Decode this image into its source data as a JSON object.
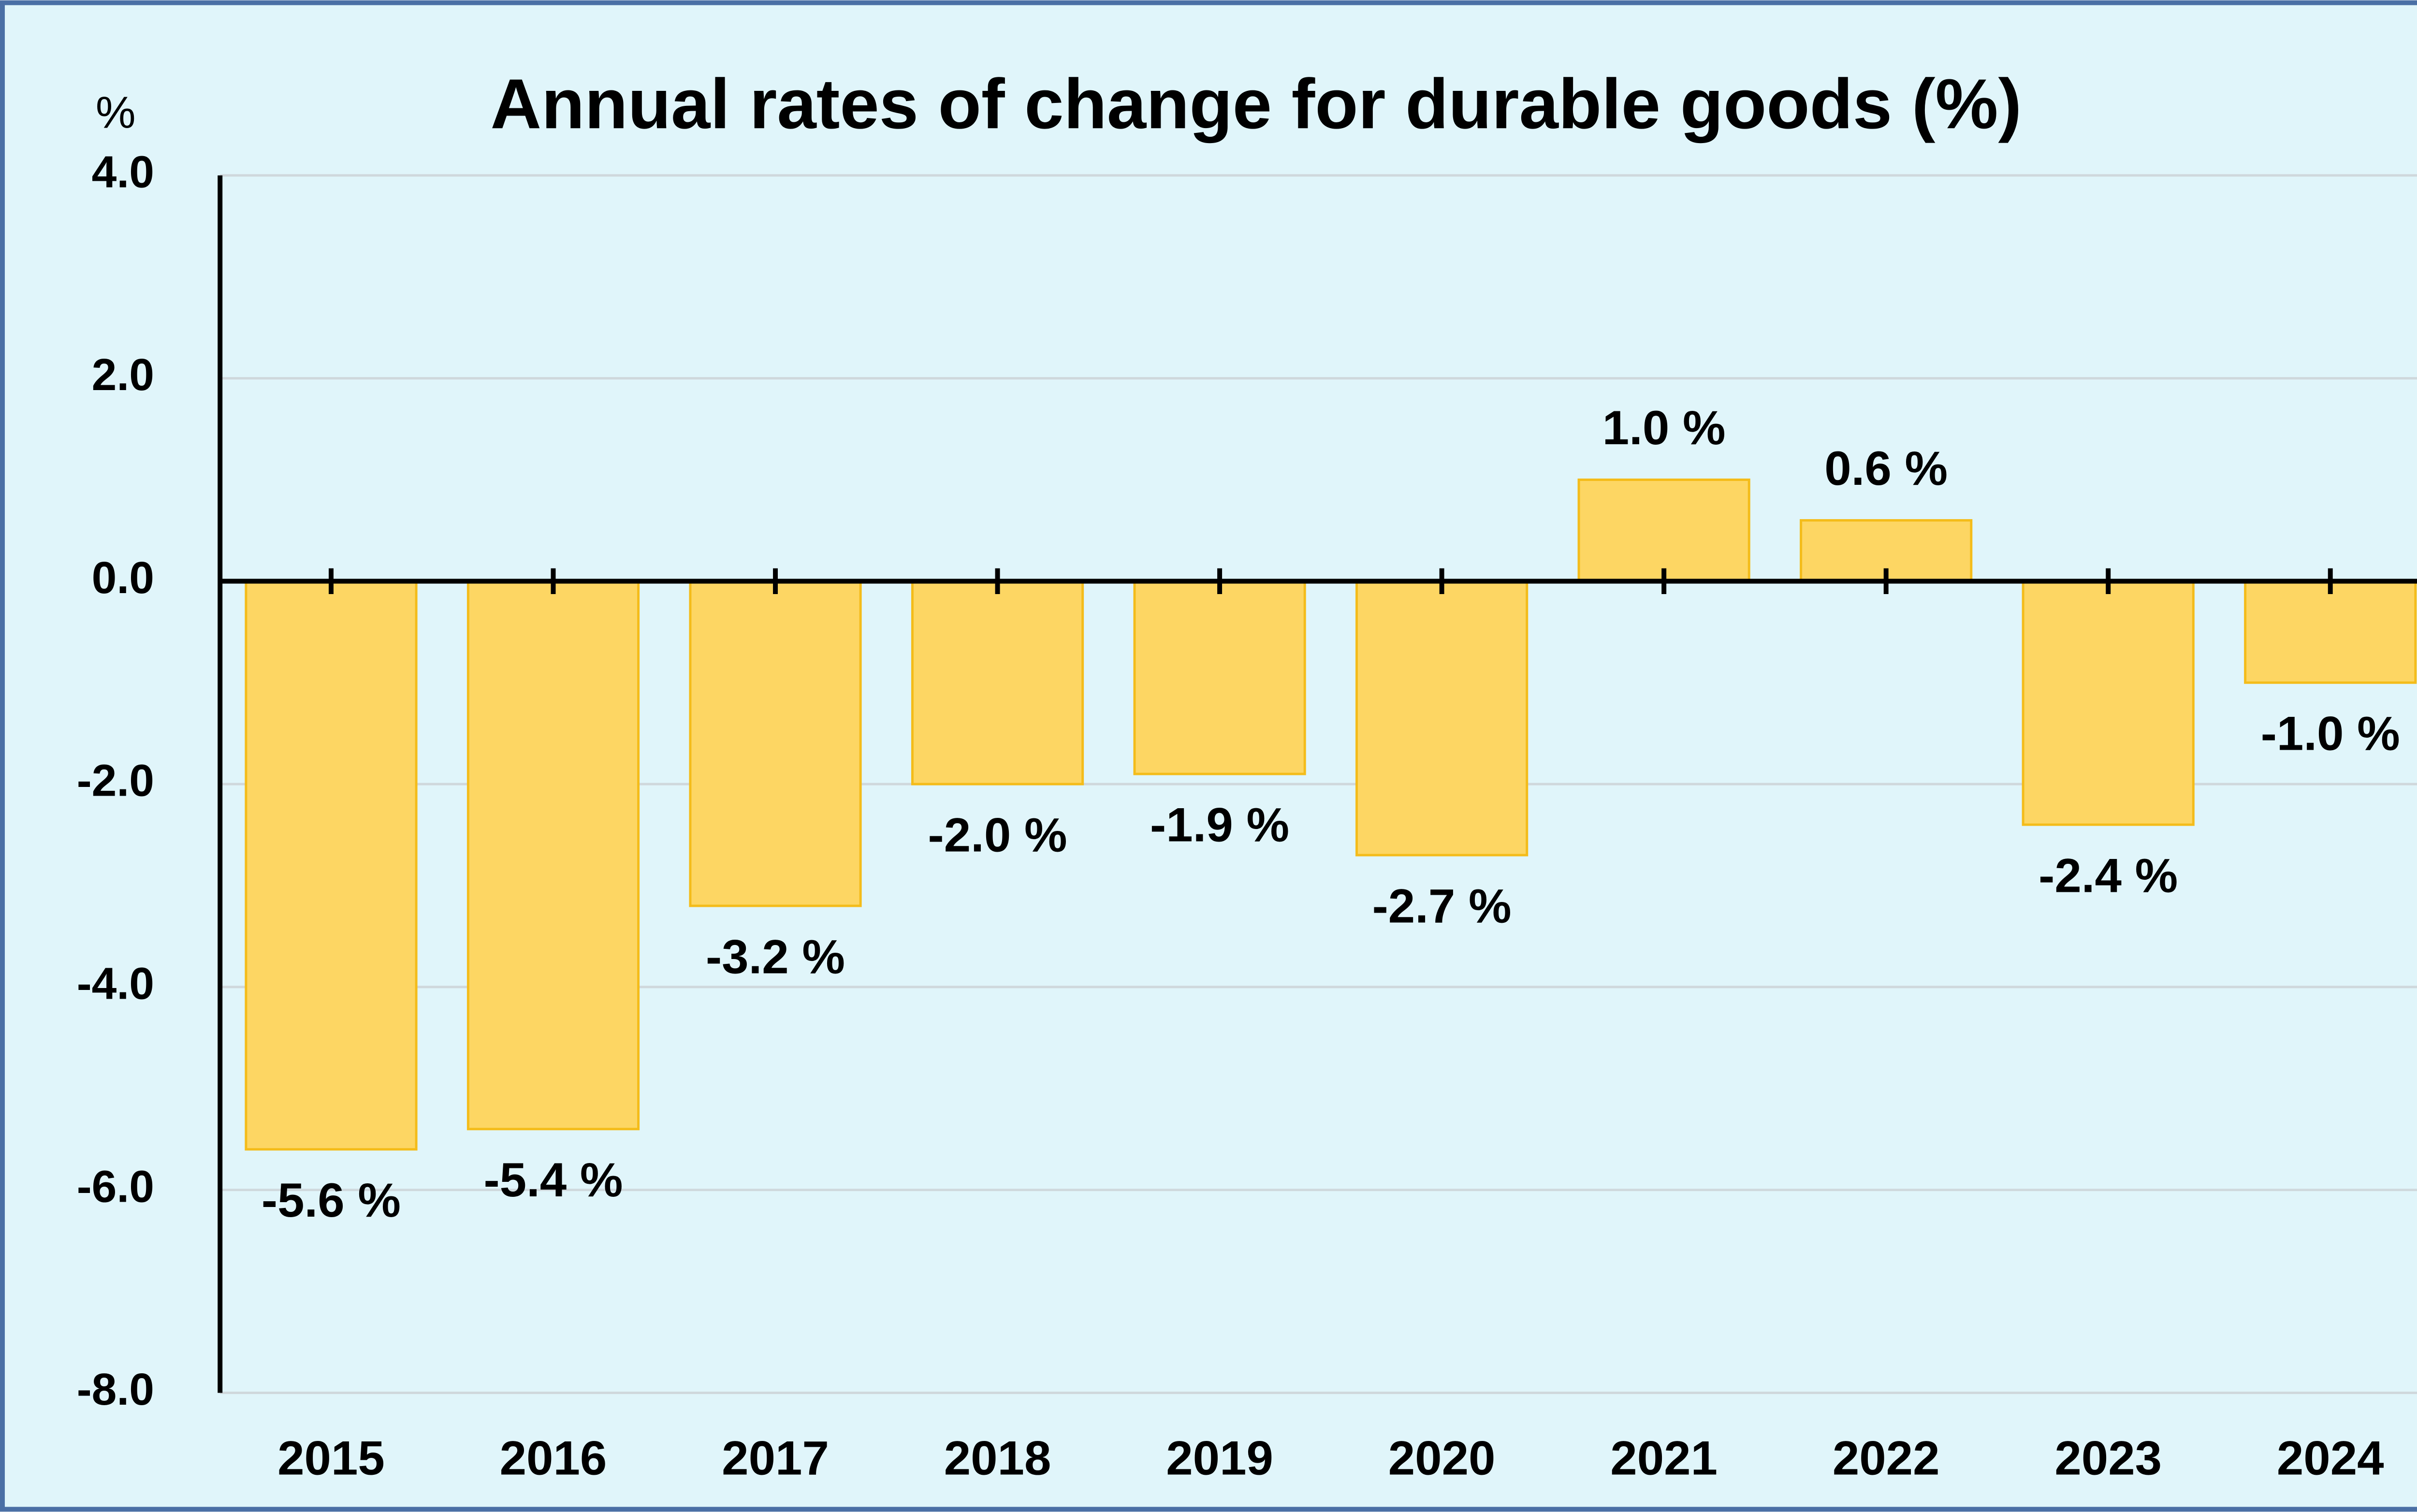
{
  "chart_data": {
    "type": "bar",
    "title": "Annual rates of change for durable goods (%)",
    "y_label": "%",
    "categories": [
      "2015",
      "2016",
      "2017",
      "2018",
      "2019",
      "2020",
      "2021",
      "2022",
      "2023",
      "2024"
    ],
    "values": [
      -5.6,
      -5.4,
      -3.2,
      -2.0,
      -1.9,
      -2.7,
      1.0,
      0.6,
      -2.4,
      -1.0
    ],
    "value_labels": [
      "-5.6 %",
      "-5.4 %",
      "-3.2 %",
      "-2.0 %",
      "-1.9 %",
      "-2.7 %",
      "1.0 %",
      "0.6 %",
      "-2.4 %",
      "-1.0 %"
    ],
    "color": "#fdd663",
    "ylim": [
      -8,
      4
    ],
    "yticks": [
      {
        "value": -8,
        "label": "-8.0"
      },
      {
        "value": -6,
        "label": "-6.0"
      },
      {
        "value": -4,
        "label": "-4.0"
      },
      {
        "value": -2,
        "label": "-2.0"
      },
      {
        "value": 0,
        "label": "0.0"
      },
      {
        "value": 2,
        "label": "2.0"
      },
      {
        "value": 4,
        "label": "4.0"
      }
    ],
    "grid": true
  }
}
